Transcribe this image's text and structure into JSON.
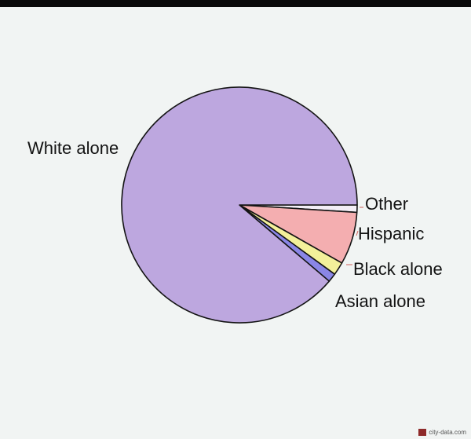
{
  "chart_data": {
    "type": "pie",
    "title": "",
    "start_angle_deg": 0,
    "direction": "clockwise",
    "slices": [
      {
        "label": "Other",
        "value": 1.0,
        "color": "#f3eef6"
      },
      {
        "label": "Hispanic",
        "value": 7.2,
        "color": "#f4aeb0"
      },
      {
        "label": "Black alone",
        "value": 1.8,
        "color": "#f3f09a"
      },
      {
        "label": "Asian alone",
        "value": 1.2,
        "color": "#8a86e6"
      },
      {
        "label": "White alone",
        "value": 88.8,
        "color": "#bda7df"
      }
    ],
    "outline_color": "#141414"
  },
  "watermark": {
    "text": "city-data.com"
  }
}
